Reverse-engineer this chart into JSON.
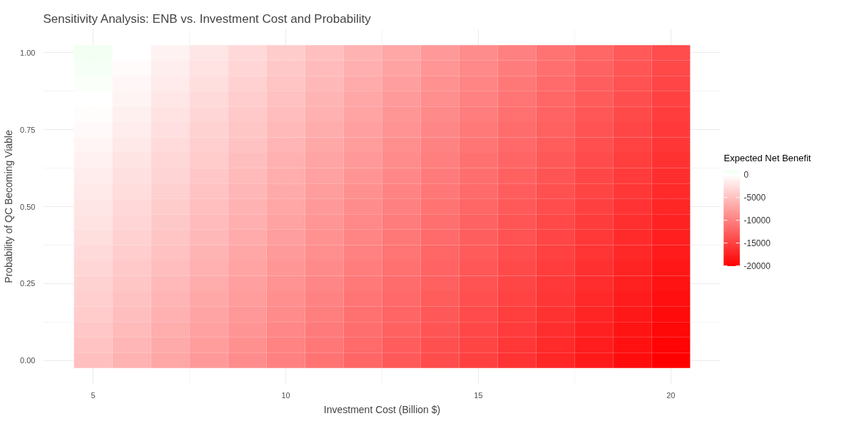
{
  "chart_data": {
    "type": "heatmap",
    "title": "Sensitivity Analysis: ENB vs. Investment Cost and Probability",
    "xlabel": "Investment Cost (Billion $)",
    "ylabel": "Probability of QC Becoming Viable",
    "legend_title": "Expected Net Benefit",
    "x": [
      5,
      6,
      7,
      8,
      9,
      10,
      11,
      12,
      13,
      14,
      15,
      16,
      17,
      18,
      19,
      20
    ],
    "y": [
      1.0,
      0.95,
      0.9,
      0.85,
      0.8,
      0.75,
      0.7,
      0.65,
      0.6,
      0.55,
      0.5,
      0.45,
      0.4,
      0.35,
      0.3,
      0.25,
      0.2,
      0.15,
      0.1,
      0.05,
      0.0
    ],
    "cells": [
      [
        1000,
        0,
        -1000,
        -2000,
        -3000,
        -4000,
        -5000,
        -6000,
        -7000,
        -8000,
        -9000,
        -10000,
        -11000,
        -12000,
        -13000,
        -14000
      ],
      [
        700,
        -300,
        -1300,
        -2300,
        -3300,
        -4300,
        -5300,
        -6300,
        -7300,
        -8300,
        -9300,
        -10300,
        -11300,
        -12300,
        -13300,
        -14300
      ],
      [
        400,
        -600,
        -1600,
        -2600,
        -3600,
        -4600,
        -5600,
        -6600,
        -7600,
        -8600,
        -9600,
        -10600,
        -11600,
        -12600,
        -13600,
        -14600
      ],
      [
        100,
        -900,
        -1900,
        -2900,
        -3900,
        -4900,
        -5900,
        -6900,
        -7900,
        -8900,
        -9900,
        -10900,
        -11900,
        -12900,
        -13900,
        -14900
      ],
      [
        -200,
        -1200,
        -2200,
        -3200,
        -4200,
        -5200,
        -6200,
        -7200,
        -8200,
        -9200,
        -10200,
        -11200,
        -12200,
        -13200,
        -14200,
        -15200
      ],
      [
        -500,
        -1500,
        -2500,
        -3500,
        -4500,
        -5500,
        -6500,
        -7500,
        -8500,
        -9500,
        -10500,
        -11500,
        -12500,
        -13500,
        -14500,
        -15500
      ],
      [
        -800,
        -1800,
        -2800,
        -3800,
        -4800,
        -5800,
        -6800,
        -7800,
        -8800,
        -9800,
        -10800,
        -11800,
        -12800,
        -13800,
        -14800,
        -15800
      ],
      [
        -1100,
        -2100,
        -3100,
        -4100,
        -5100,
        -6100,
        -7100,
        -8100,
        -9100,
        -10100,
        -11100,
        -12100,
        -13100,
        -14100,
        -15100,
        -16100
      ],
      [
        -1400,
        -2400,
        -3400,
        -4400,
        -5400,
        -6400,
        -7400,
        -8400,
        -9400,
        -10400,
        -11400,
        -12400,
        -13400,
        -14400,
        -15400,
        -16400
      ],
      [
        -1700,
        -2700,
        -3700,
        -4700,
        -5700,
        -6700,
        -7700,
        -8700,
        -9700,
        -10700,
        -11700,
        -12700,
        -13700,
        -14700,
        -15700,
        -16700
      ],
      [
        -2000,
        -3000,
        -4000,
        -5000,
        -6000,
        -7000,
        -8000,
        -9000,
        -10000,
        -11000,
        -12000,
        -13000,
        -14000,
        -15000,
        -16000,
        -17000
      ],
      [
        -2300,
        -3300,
        -4300,
        -5300,
        -6300,
        -7300,
        -8300,
        -9300,
        -10300,
        -11300,
        -12300,
        -13300,
        -14300,
        -15300,
        -16300,
        -17300
      ],
      [
        -2600,
        -3600,
        -4600,
        -5600,
        -6600,
        -7600,
        -8600,
        -9600,
        -10600,
        -11600,
        -12600,
        -13600,
        -14600,
        -15600,
        -16600,
        -17600
      ],
      [
        -2900,
        -3900,
        -4900,
        -5900,
        -6900,
        -7900,
        -8900,
        -9900,
        -10900,
        -11900,
        -12900,
        -13900,
        -14900,
        -15900,
        -16900,
        -17900
      ],
      [
        -3200,
        -4200,
        -5200,
        -6200,
        -7200,
        -8200,
        -9200,
        -10200,
        -11200,
        -12200,
        -13200,
        -14200,
        -15200,
        -16200,
        -17200,
        -18200
      ],
      [
        -3500,
        -4500,
        -5500,
        -6500,
        -7500,
        -8500,
        -9500,
        -10500,
        -11500,
        -12500,
        -13500,
        -14500,
        -15500,
        -16500,
        -17500,
        -18500
      ],
      [
        -3800,
        -4800,
        -5800,
        -6800,
        -7800,
        -8800,
        -9800,
        -10800,
        -11800,
        -12800,
        -13800,
        -14800,
        -15800,
        -16800,
        -17800,
        -18800
      ],
      [
        -4100,
        -5100,
        -6100,
        -7100,
        -8100,
        -9100,
        -10100,
        -11100,
        -12100,
        -13100,
        -14100,
        -15100,
        -16100,
        -17100,
        -18100,
        -19100
      ],
      [
        -4400,
        -5400,
        -6400,
        -7400,
        -8400,
        -9400,
        -10400,
        -11400,
        -12400,
        -13400,
        -14400,
        -15400,
        -16400,
        -17400,
        -18400,
        -19400
      ],
      [
        -4700,
        -5700,
        -6700,
        -7700,
        -8700,
        -9700,
        -10700,
        -11700,
        -12700,
        -13700,
        -14700,
        -15700,
        -16700,
        -17700,
        -18700,
        -19700
      ],
      [
        -5000,
        -6000,
        -7000,
        -8000,
        -9000,
        -10000,
        -11000,
        -12000,
        -13000,
        -14000,
        -15000,
        -16000,
        -17000,
        -18000,
        -19000,
        -20000
      ]
    ],
    "colors": [
      "#ff0000",
      "#ffffff",
      "#00ff00"
    ],
    "clim": [
      -20000,
      1000
    ],
    "cticks": [
      {
        "value": 0,
        "label": "0"
      },
      {
        "value": -5000,
        "label": "-5000"
      },
      {
        "value": -10000,
        "label": "-10000"
      },
      {
        "value": -15000,
        "label": "-15000"
      },
      {
        "value": -20000,
        "label": "-20000"
      }
    ],
    "xlim": [
      3.7,
      21.3
    ],
    "xticks": [
      5,
      10,
      15,
      20
    ],
    "ylim": [
      -0.0775,
      1.0775
    ],
    "yticks": [
      {
        "value": 0,
        "label": "0.00"
      },
      {
        "value": 0.25,
        "label": "0.25"
      },
      {
        "value": 0.5,
        "label": "0.50"
      },
      {
        "value": 0.75,
        "label": "0.75"
      },
      {
        "value": 1,
        "label": "1.00"
      }
    ],
    "grid": true
  }
}
